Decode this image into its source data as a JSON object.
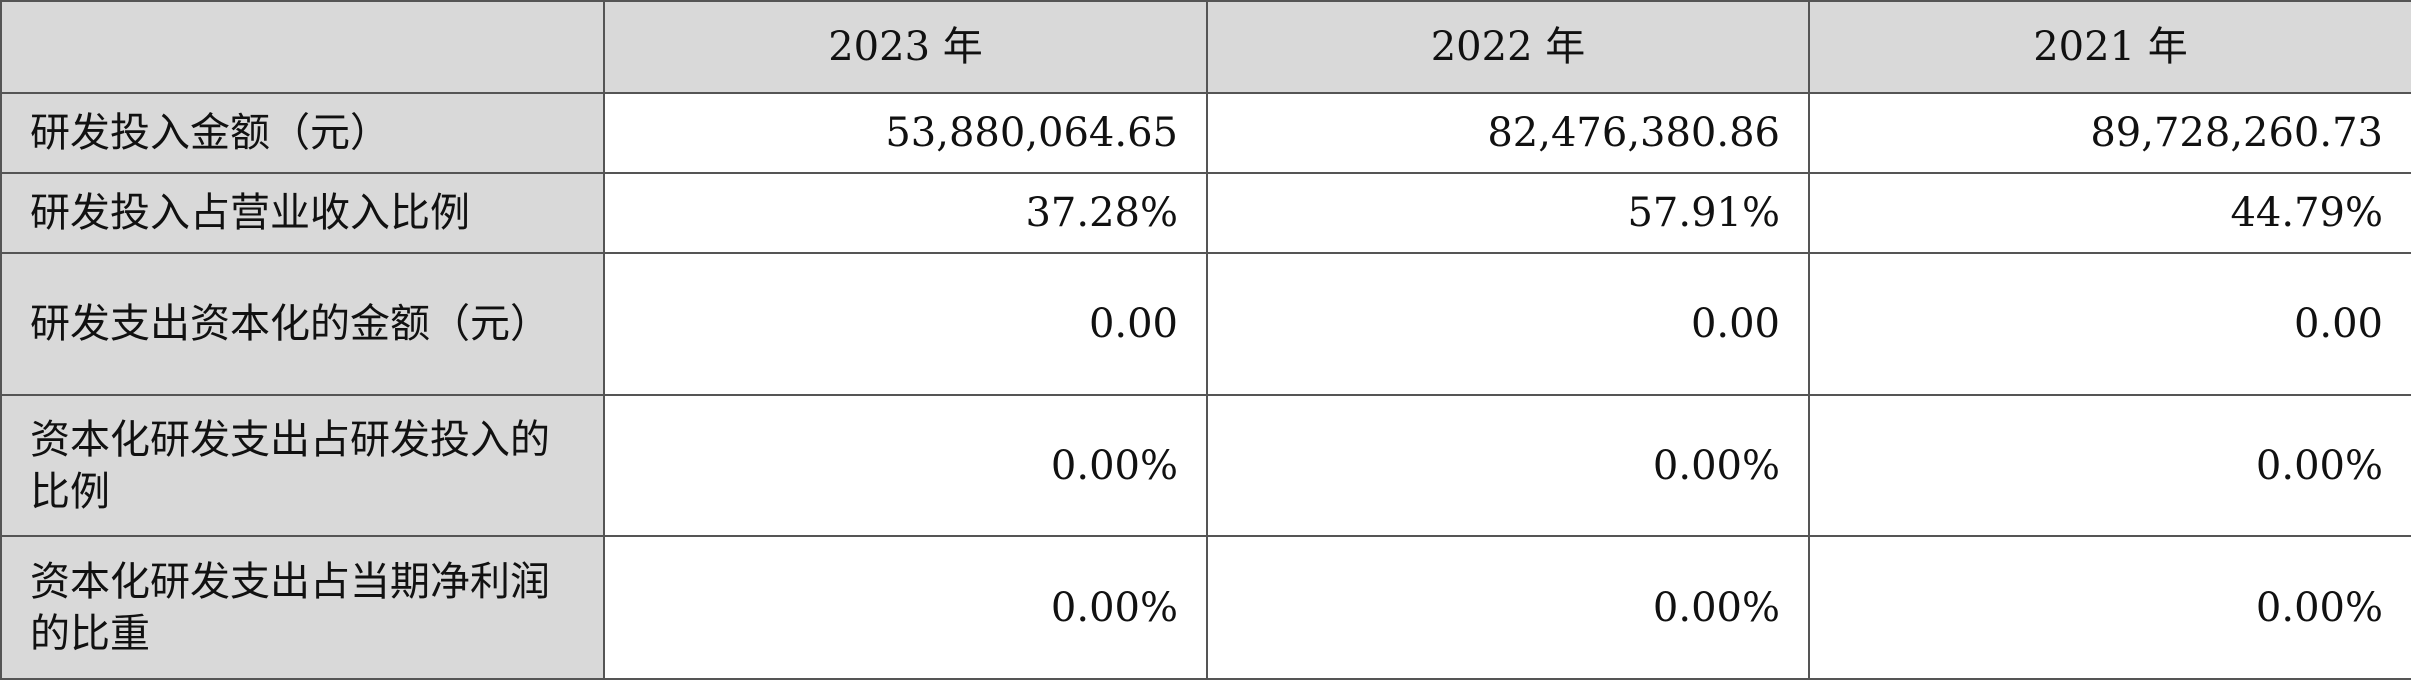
{
  "table": {
    "header": [
      "",
      "2023 年",
      "2022 年",
      "2021 年"
    ],
    "rows": [
      [
        "研发投入金额（元）",
        "53,880,064.65",
        "82,476,380.86",
        "89,728,260.73"
      ],
      [
        "研发投入占营业收入比例",
        "37.28%",
        "57.91%",
        "44.79%"
      ],
      [
        "研发支出资本化的金额（元）",
        "0.00",
        "0.00",
        "0.00"
      ],
      [
        "资本化研发支出占研发投入的比例",
        "0.00%",
        "0.00%",
        "0.00%"
      ],
      [
        "资本化研发支出占当期净利润的比重",
        "0.00%",
        "0.00%",
        "0.00%"
      ]
    ]
  }
}
